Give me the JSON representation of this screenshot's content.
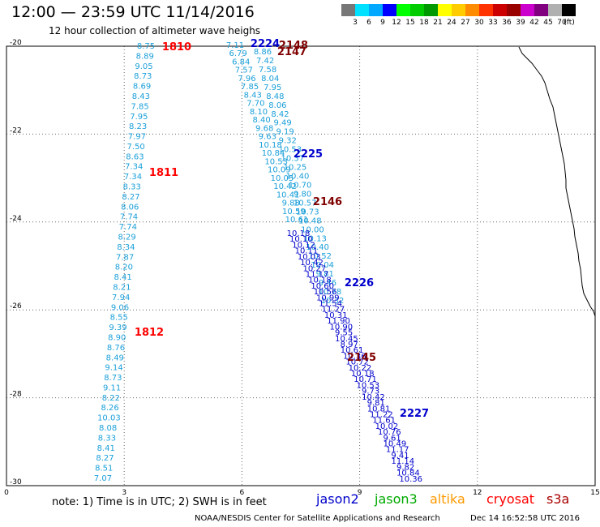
{
  "header": {
    "title": "12:00 — 23:59 UTC 11/14/2016",
    "subtitle": "12 hour collection of altimeter wave heighs"
  },
  "color_scale": {
    "colors": [
      "#777777",
      "#00e1ff",
      "#00a8ff",
      "#0000ff",
      "#00ff00",
      "#00cc00",
      "#009900",
      "#ffff00",
      "#ffcc00",
      "#ff8c00",
      "#ff3300",
      "#cc0000",
      "#990000",
      "#cc00cc",
      "#800080",
      "#b0b0b0",
      "#000000"
    ],
    "labels": [
      "3",
      "6",
      "9",
      "12",
      "15",
      "18",
      "21",
      "24",
      "27",
      "30",
      "33",
      "36",
      "39",
      "42",
      "45",
      "70",
      "(ft)"
    ]
  },
  "map": {
    "x_ticks": [
      "0",
      "3",
      "6",
      "9",
      "12",
      "15"
    ],
    "y_ticks": [
      "-20",
      "-22",
      "-24",
      "-26",
      "-28",
      "-30"
    ]
  },
  "passes": {
    "light": {
      "color": "#1a9fd9",
      "values": [
        "8.75",
        "8.89",
        "9.05",
        "8.73",
        "8.69",
        "8.43",
        "7.85",
        "7.95",
        "8.23",
        "7.97",
        "7.50",
        "8.63",
        "7.34",
        "7.34",
        "8.33",
        "8.27",
        "8.06",
        "7.74",
        "7.74",
        "8.29",
        "8.34",
        "7.87",
        "8.20",
        "8.41",
        "8.21",
        "7.94",
        "9.06",
        "8.55",
        "9.39",
        "8.90",
        "8.76",
        "8.49",
        "9.14",
        "8.73",
        "9.11",
        "8.22",
        "8.26",
        "10.03",
        "8.08",
        "8.33",
        "8.41",
        "8.27",
        "8.51",
        "7.07"
      ]
    },
    "mid": {
      "color": "#1a9fd9",
      "values": [
        "7.11",
        "6.79",
        "6.84",
        "7.57",
        "7.96",
        "7.85",
        "8.43",
        "7.70",
        "8.10",
        "8.40",
        "9.68",
        "9.63",
        "10.18",
        "10.84",
        "10.53",
        "10.09",
        "10.05",
        "10.42",
        "10.41",
        "9.88",
        "10.59",
        "10.61"
      ]
    },
    "midb": {
      "color": "#1a9fd9",
      "values": [
        "8.86",
        "7.42",
        "7.58",
        "8.04",
        "7.95",
        "8.48",
        "8.06",
        "8.42",
        "9.49",
        "9.19",
        "9.32",
        "10.53",
        "10.37",
        "10.25",
        "10.40",
        "10.70",
        "9.80",
        "10.57",
        "10.73",
        "10.48",
        "10.00",
        "10.13",
        "10.40",
        "10.52",
        "10.04",
        "9.81",
        "9.46",
        "10.78",
        "10.32"
      ]
    },
    "dark": {
      "color": "#0000cc",
      "values": [
        "10.18",
        "10.10",
        "10.12",
        "10.11",
        "10.03",
        "10.42",
        "10.27",
        "11.17",
        "10.18",
        "10.60",
        "10.56",
        "10.99",
        "11.54",
        "11.27",
        "10.31",
        "11.90",
        "10.90",
        "9.55",
        "10.45",
        "8.97",
        "10.61",
        "10.36",
        "10.72",
        "10.22",
        "10.18",
        "10.71",
        "10.53",
        "9.73",
        "10.42",
        "9.81",
        "10.81",
        "11.22",
        "11.61",
        "10.02",
        "10.76",
        "9.61",
        "10.49",
        "11.17",
        "9.41",
        "11.14",
        "9.82",
        "10.84",
        "10.36",
        "10.53"
      ]
    }
  },
  "pass_labels": [
    {
      "text": "1810",
      "color": "#ff0000"
    },
    {
      "text": "1811",
      "color": "#ff0000"
    },
    {
      "text": "1812",
      "color": "#ff0000"
    },
    {
      "text": "2224",
      "color": "#0000cc"
    },
    {
      "text": "2225",
      "color": "#0000cc"
    },
    {
      "text": "2226",
      "color": "#0000cc"
    },
    {
      "text": "2227",
      "color": "#0000cc"
    },
    {
      "text": "2148",
      "color": "#800000"
    },
    {
      "text": "2147",
      "color": "#800000"
    },
    {
      "text": "2146",
      "color": "#800000"
    },
    {
      "text": "2145",
      "color": "#800000"
    }
  ],
  "footer": {
    "note": "note: 1) Time is in UTC; 2) SWH is in feet",
    "satellites": [
      {
        "name": "jason2",
        "color": "#0000cc"
      },
      {
        "name": "jason3",
        "color": "#00aa00"
      },
      {
        "name": "altika",
        "color": "#ff9900"
      },
      {
        "name": "cryosat",
        "color": "#ff0000"
      },
      {
        "name": "s3a",
        "color": "#aa0000"
      }
    ],
    "credit": "NOAA/NESDIS Center for Satellite Applications and Research",
    "timestamp": "Dec 14 16:52:58 UTC 2016"
  }
}
